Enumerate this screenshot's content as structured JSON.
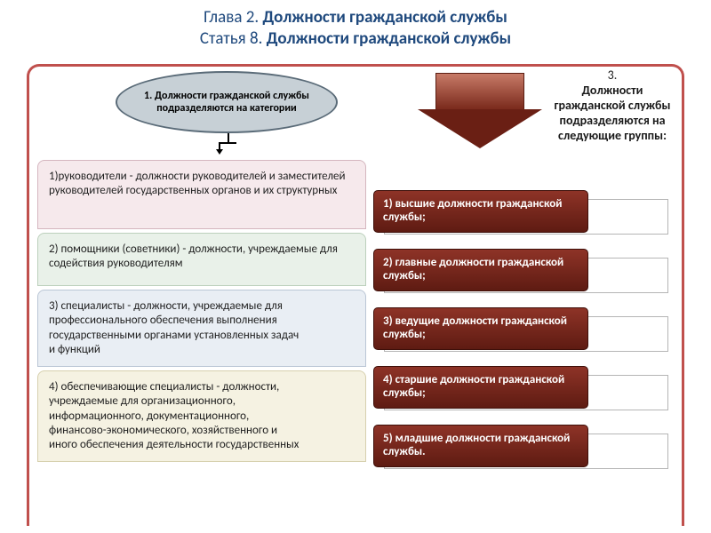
{
  "title": {
    "line1_prefix": "Глава 2. ",
    "line1_bold": "Должности гражданской службы",
    "line2_prefix": "Статья 8. ",
    "line2_bold": "Должности гражданской службы"
  },
  "styling": {
    "border_color": "#c0504d",
    "title_color": "#1f497d",
    "ellipse_bg": "#c7d0d6",
    "ellipse_border": "#5a6b78",
    "arrow_gradient_top": "#c77a67",
    "arrow_gradient_bottom": "#7a2a1c",
    "arrow_head_color": "#6a1f14",
    "plate_gradient_top": "#8e3327",
    "plate_gradient_bottom": "#5e1b12",
    "plate_text_color": "#ffffff",
    "left_block_colors": {
      "b1_bg": "#f6e9ec",
      "b1_border": "#d5b6bf",
      "b2_bg": "#e9f1e9",
      "b2_border": "#bcd0bc",
      "b3_bg": "#e9eef4",
      "b3_border": "#bac6d5",
      "b4_bg": "#f5f2e2",
      "b4_border": "#d7d0ae"
    },
    "title_fontsize": 19,
    "body_fontsize": 13,
    "caption_fontsize": 14,
    "ellipse_fontsize": 12
  },
  "ellipse_text": "1. Должности гражданской службы подразделяются на категории",
  "right_caption_num": "3.",
  "right_caption_text": "Должности гражданской службы подразделяются на следующие группы:",
  "left_blocks": {
    "b1": "1)руководители - должности руководителей и заместителей руководителей государственных органов и их структурных",
    "b2": "2) помощники (советники) - должности, учреждаемые для содействия руководителям",
    "b3": "3) специалисты - должности, учреждаемые для профессионального обеспечения выполнения государственными органами установленных задач и функций",
    "b4": "4) обеспечивающие специалисты - должности, учреждаемые для организационного, информационного, документационного, финансово-экономического, хозяйственного и иного обеспечения деятельности государственных"
  },
  "right_items": {
    "r1": "1) высшие должности гражданской службы;",
    "r2": "2) главные должности гражданской службы;",
    "r3": "3) ведущие должности гражданской службы;",
    "r4": "4) старшие должности гражданской службы;",
    "r5": "5) младшие должности гражданской службы."
  }
}
